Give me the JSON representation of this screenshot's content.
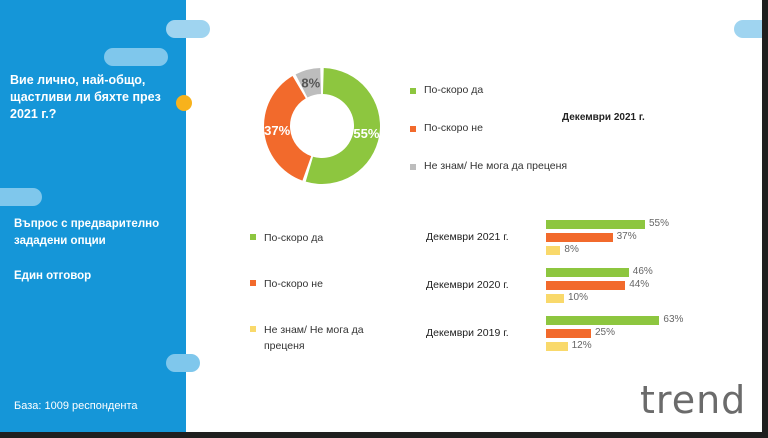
{
  "sidebar": {
    "question": "Вие лично, най-общо, щастливи ли бяхте през 2021 г.?",
    "option_type": "Въпрос с предварително зададени опции",
    "answer_type": "Един отговор",
    "base": "База:  1009 респондента"
  },
  "logo": "trend",
  "colors": {
    "sidebar": "#1596d8",
    "yes": "#8dc63f",
    "no": "#f26a2c",
    "dont_know": "#bdbdbd",
    "dont_know_bar": "#f9d96b",
    "accent_dot": "#f8b21c"
  },
  "chart_data": [
    {
      "type": "pie",
      "title": "Декември 2021 г.",
      "slices": [
        {
          "name": "По-скоро да",
          "value": 55,
          "label": "55%"
        },
        {
          "name": "По-скоро не",
          "value": 37,
          "label": "37%"
        },
        {
          "name": "Не знам/ Не мога да преценя",
          "value": 8,
          "label": "8%"
        }
      ],
      "legend": [
        "По-скоро да",
        "По-скоро не",
        "Не знам/ Не мога да преценя"
      ]
    },
    {
      "type": "bar",
      "orientation": "horizontal",
      "categories": [
        "Декември 2021 г.",
        "Декември 2020 г.",
        "Декември 2019 г."
      ],
      "series": [
        {
          "name": "По-скоро да",
          "values": [
            55,
            46,
            63
          ],
          "labels": [
            "55%",
            "46%",
            "63%"
          ]
        },
        {
          "name": "По-скоро не",
          "values": [
            37,
            44,
            25
          ],
          "labels": [
            "37%",
            "44%",
            "25%"
          ]
        },
        {
          "name": "Не знам/ Не мога да преценя",
          "values": [
            8,
            10,
            12
          ],
          "labels": [
            "8%",
            "10%",
            "12%"
          ]
        }
      ],
      "legend": [
        "По-скоро да",
        "По-скоро не",
        "Не знам/ Не мога да преценя"
      ]
    }
  ]
}
